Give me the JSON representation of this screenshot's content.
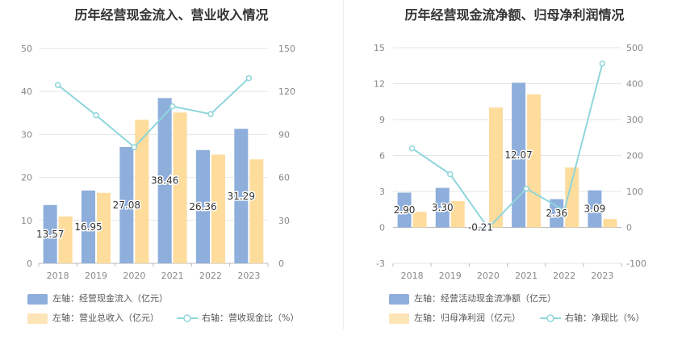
{
  "chart_data": [
    {
      "type": "bar",
      "title": "历年经营现金流入、营业收入情况",
      "categories": [
        "2018",
        "2019",
        "2020",
        "2021",
        "2022",
        "2023"
      ],
      "left_axis": {
        "min": 0,
        "max": 50,
        "ticks": [
          0,
          10,
          20,
          30,
          40,
          50
        ]
      },
      "right_axis": {
        "min": 0,
        "max": 150,
        "ticks": [
          0,
          30,
          60,
          90,
          120,
          150
        ]
      },
      "series": [
        {
          "name": "左轴：经营现金流入（亿元）",
          "axis": "left",
          "kind": "bar",
          "color": "#8eaedc",
          "values": [
            13.57,
            16.95,
            27.08,
            38.46,
            26.36,
            31.29
          ],
          "labels": [
            "13.57",
            "16.95",
            "27.08",
            "38.46",
            "26.36",
            "31.29"
          ]
        },
        {
          "name": "左轴：营业总收入（亿元）",
          "axis": "left",
          "kind": "bar",
          "color": "#fddc9c",
          "values": [
            10.9,
            16.4,
            33.4,
            35.1,
            25.3,
            24.2
          ]
        },
        {
          "name": "右轴：营收现金比（%）",
          "axis": "right",
          "kind": "line",
          "color": "#8fd6dc",
          "values": [
            124.5,
            103.4,
            81.1,
            109.6,
            104.2,
            129.3
          ]
        }
      ]
    },
    {
      "type": "bar",
      "title": "历年经营现金流净额、归母净利润情况",
      "categories": [
        "2018",
        "2019",
        "2020",
        "2021",
        "2022",
        "2023"
      ],
      "left_axis": {
        "min": -3,
        "max": 15,
        "ticks": [
          -3,
          0,
          3,
          6,
          9,
          12,
          15
        ]
      },
      "right_axis": {
        "min": -100,
        "max": 500,
        "ticks": [
          -100,
          0,
          100,
          200,
          300,
          400,
          500
        ]
      },
      "series": [
        {
          "name": "左轴：经营活动现金流净额（亿元）",
          "axis": "left",
          "kind": "bar",
          "color": "#8eaedc",
          "values": [
            2.9,
            3.3,
            -0.21,
            12.07,
            2.36,
            3.09
          ],
          "labels": [
            "2.90",
            "3.30",
            "-0.21",
            "12.07",
            "2.36",
            "3.09"
          ]
        },
        {
          "name": "左轴：归母净利润（亿元）",
          "axis": "left",
          "kind": "bar",
          "color": "#fddc9c",
          "values": [
            1.3,
            2.2,
            10.0,
            11.1,
            5.0,
            0.7
          ]
        },
        {
          "name": "右轴：净现比（%）",
          "axis": "right",
          "kind": "line",
          "color": "#8fd6dc",
          "values": [
            220,
            148,
            -2,
            108,
            47,
            456
          ]
        }
      ]
    }
  ]
}
